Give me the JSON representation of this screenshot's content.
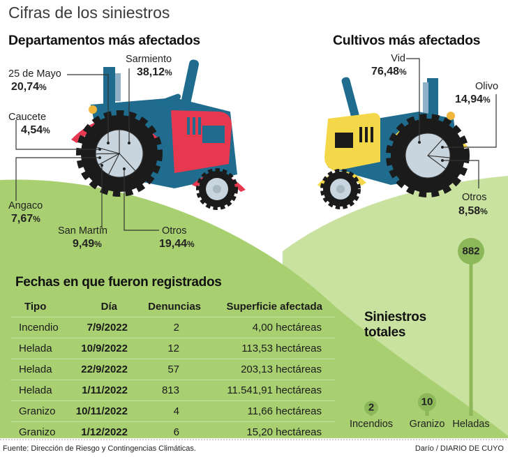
{
  "title": "Cifras de los siniestros",
  "departamentos": {
    "title": "Departamentos más afectados"
  },
  "cultivos": {
    "title": "Cultivos más afectados"
  },
  "table": {
    "title": "Fechas en que fueron registrados",
    "headers": [
      "Tipo",
      "Día",
      "Denuncias",
      "Superficie afectada"
    ],
    "rows": [
      [
        "Incendio",
        "7/9/2022",
        "2",
        "4,00 hectáreas"
      ],
      [
        "Helada",
        "10/9/2022",
        "12",
        "113,53 hectáreas"
      ],
      [
        "Helada",
        "22/9/2022",
        "57",
        "203,13 hectáreas"
      ],
      [
        "Helada",
        "1/11/2022",
        "813",
        "11.541,91 hectáreas"
      ],
      [
        "Granizo",
        "10/11/2022",
        "4",
        "11,66 hectáreas"
      ],
      [
        "Granizo",
        "1/12/2022",
        "6",
        "15,20 hectáreas"
      ]
    ]
  },
  "totales": {
    "title_line1": "Siniestros",
    "title_line2": "totales"
  },
  "footer": {
    "source": "Fuente: Dirección de Riesgo y Contingencias Climáticas.",
    "credit": "Darío / DIARIO DE CUYO"
  },
  "colors": {
    "hill_dark": "#a9d070",
    "hill_light": "#c9e29f",
    "tractor_red": "#e63950",
    "tractor_blue": "#1f6c8e",
    "tractor_yellow": "#f4d84a",
    "hub": "#c8d5de",
    "lollipop": "#8db85a"
  },
  "chart_data": [
    {
      "type": "pie",
      "title": "Departamentos más afectados",
      "unit": "%",
      "slices": [
        {
          "label": "Sarmiento",
          "value": 38.12,
          "text": "38,12"
        },
        {
          "label": "Otros",
          "value": 19.44,
          "text": "19,44"
        },
        {
          "label": "San Martín",
          "value": 9.49,
          "text": "9,49"
        },
        {
          "label": "Angaco",
          "value": 7.67,
          "text": "7,67"
        },
        {
          "label": "Caucete",
          "value": 4.54,
          "text": "4,54"
        },
        {
          "label": "25 de Mayo",
          "value": 20.74,
          "text": "20,74"
        }
      ]
    },
    {
      "type": "pie",
      "title": "Cultivos más afectados",
      "unit": "%",
      "slices": [
        {
          "label": "Olivo",
          "value": 14.94,
          "text": "14,94"
        },
        {
          "label": "Otros",
          "value": 8.58,
          "text": "8,58"
        },
        {
          "label": "Vid",
          "value": 76.48,
          "text": "76,48"
        }
      ]
    },
    {
      "type": "bar",
      "style": "lollipop",
      "title": "Siniestros totales",
      "categories": [
        "Incendios",
        "Granizo",
        "Heladas"
      ],
      "values": [
        2,
        10,
        882
      ]
    }
  ]
}
